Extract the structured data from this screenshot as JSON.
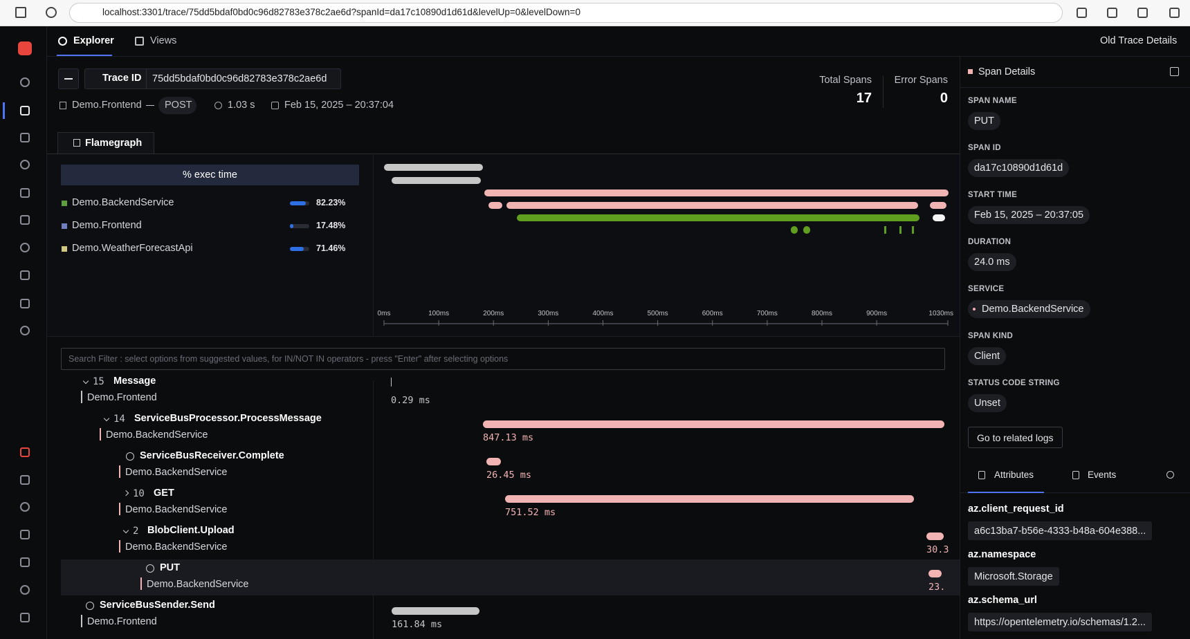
{
  "browser": {
    "url": "localhost:3301/trace/75dd5bdaf0bd0c96d82783e378c2ae6d?spanId=da17c10890d1d61d&levelUp=0&levelDown=0"
  },
  "nav": {
    "tabs": [
      "Explorer",
      "Views"
    ],
    "old_trace": "Old Trace Details"
  },
  "trace": {
    "label": "Trace ID",
    "id": "75dd5bdaf0bd0c96d82783e378c2ae6d",
    "service": "Demo.Frontend",
    "method": "POST",
    "duration": "1.03 s",
    "start": "Feb 15, 2025 – 20:37:04"
  },
  "stats": [
    {
      "label": "Total Spans",
      "value": 17
    },
    {
      "label": "Error Spans",
      "value": 0
    }
  ],
  "flamegraph": {
    "tab": "Flamegraph",
    "exec_header": "% exec time",
    "services": [
      {
        "name": "Demo.BackendService",
        "color": "#5f9e3c",
        "exec": 82.23,
        "exec_label": "82.23%"
      },
      {
        "name": "Demo.Frontend",
        "color": "#6f7fbf",
        "exec": 17.48,
        "exec_label": "17.48%"
      },
      {
        "name": "Demo.WeatherForecastApi",
        "color": "#cfc87e",
        "exec": 71.46,
        "exec_label": "71.46%"
      }
    ],
    "xlim": [
      0,
      1030
    ],
    "xticks": [
      {
        "value": 0,
        "label": "0ms"
      },
      {
        "value": 100,
        "label": "100ms"
      },
      {
        "value": 200,
        "label": "200ms"
      },
      {
        "value": 300,
        "label": "300ms"
      },
      {
        "value": 400,
        "label": "400ms"
      },
      {
        "value": 500,
        "label": "500ms"
      },
      {
        "value": 600,
        "label": "600ms"
      },
      {
        "value": 700,
        "label": "700ms"
      },
      {
        "value": 800,
        "label": "800ms"
      },
      {
        "value": 900,
        "label": "900ms"
      },
      {
        "value": 1030,
        "label": "1030ms"
      }
    ]
  },
  "search": {
    "placeholder": "Search Filter : select options from suggested values, for IN/NOT IN operators - press \"Enter\" after selecting options"
  },
  "spans": [
    {
      "count": 15,
      "name": "Message",
      "service": "Demo.Frontend",
      "duration": "0.29 ms"
    },
    {
      "count": 14,
      "name": "ServiceBusProcessor.ProcessMessage",
      "service": "Demo.BackendService",
      "duration": "847.13 ms"
    },
    {
      "name": "ServiceBusReceiver.Complete",
      "service": "Demo.BackendService",
      "duration": "26.45 ms"
    },
    {
      "count": 10,
      "name": "GET",
      "service": "Demo.BackendService",
      "duration": "751.52 ms"
    },
    {
      "count": 2,
      "name": "BlobClient.Upload",
      "service": "Demo.BackendService",
      "duration": "30.3"
    },
    {
      "name": "PUT",
      "service": "Demo.BackendService",
      "duration": "23."
    },
    {
      "name": "ServiceBusSender.Send",
      "service": "Demo.Frontend",
      "duration": "161.84 ms"
    }
  ],
  "details": {
    "title": "Span Details",
    "fields": [
      {
        "label": "SPAN NAME",
        "value": "PUT"
      },
      {
        "label": "SPAN ID",
        "value": "da17c10890d1d61d"
      },
      {
        "label": "START TIME",
        "value": "Feb 15, 2025 – 20:37:05"
      },
      {
        "label": "DURATION",
        "value": "24.0 ms"
      },
      {
        "label": "SERVICE",
        "value": "Demo.BackendService"
      },
      {
        "label": "SPAN KIND",
        "value": "Client"
      },
      {
        "label": "STATUS CODE STRING",
        "value": "Unset"
      }
    ],
    "logs_button": "Go to related logs",
    "tabs": [
      "Attributes",
      "Events"
    ],
    "attributes": [
      {
        "key": "az.client_request_id",
        "value": "a6c13ba7-b56e-4333-b48a-604e388..."
      },
      {
        "key": "az.namespace",
        "value": "Microsoft.Storage"
      },
      {
        "key": "az.schema_url",
        "value": "https://opentelemetry.io/schemas/1.2..."
      }
    ]
  }
}
